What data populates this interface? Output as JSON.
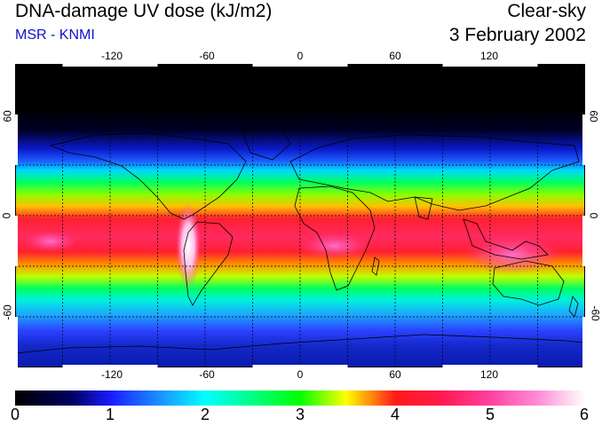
{
  "header": {
    "title": "DNA-damage UV dose (kJ/m2)",
    "subtitle": "MSR - KNMI",
    "condition": "Clear-sky",
    "date": "3 February 2002"
  },
  "map": {
    "lon_ticks": [
      "-120",
      "-60",
      "0",
      "60",
      "120"
    ],
    "lon_values": [
      -120,
      -60,
      0,
      60,
      120
    ],
    "lat_ticks": [
      "60",
      "0",
      "-60"
    ],
    "lat_values": [
      60,
      0,
      -60
    ],
    "lon_range": [
      -180,
      180
    ],
    "lat_range": [
      -90,
      90
    ],
    "grid_spacing_deg": 30,
    "grid": true,
    "colors": {
      "c0": "#000000",
      "c1": "#1a1aff",
      "c2": "#00ffff",
      "c3": "#00ff00",
      "c4": "#ff1a1a",
      "c5": "#ff40a0",
      "c6": "#ffffff"
    }
  },
  "colorbar": {
    "labels": [
      "0",
      "1",
      "2",
      "3",
      "4",
      "5",
      "6"
    ],
    "min": 0,
    "max": 6
  }
}
